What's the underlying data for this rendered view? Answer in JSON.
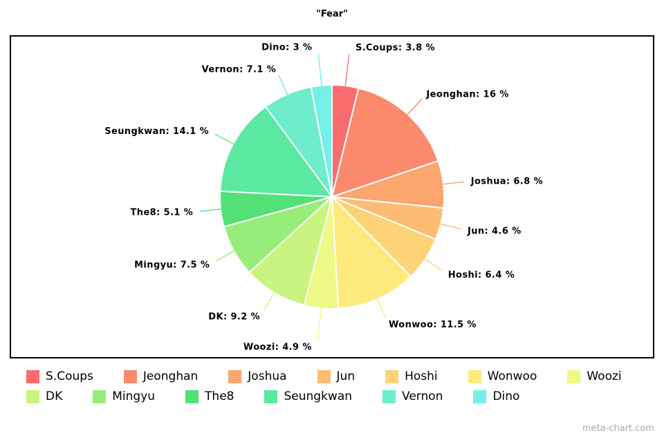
{
  "title": "\"Fear\"",
  "watermark": "meta-chart.com",
  "chart_data": {
    "type": "pie",
    "title": "\"Fear\"",
    "categories": [
      "S.Coups",
      "Jeonghan",
      "Joshua",
      "Jun",
      "Hoshi",
      "Wonwoo",
      "Woozi",
      "DK",
      "Mingyu",
      "The8",
      "Seungkwan",
      "Vernon",
      "Dino"
    ],
    "values": [
      3.8,
      16,
      6.8,
      4.6,
      6.4,
      11.5,
      4.9,
      9.2,
      7.5,
      5.1,
      14.1,
      7.1,
      3
    ],
    "unit": "%",
    "label_format": "{name}: {value} %",
    "colors": [
      "#fa6d6f",
      "#fb8a6d",
      "#fba56f",
      "#fcbc72",
      "#fdd377",
      "#feea7c",
      "#eef986",
      "#c8f47f",
      "#97ed79",
      "#52e177",
      "#5be8a0",
      "#6dedcb",
      "#74f0e8"
    ],
    "start_angle_deg": 0,
    "direction": "clockwise",
    "legend_position": "bottom",
    "slice_border_color": "#ffffff"
  }
}
